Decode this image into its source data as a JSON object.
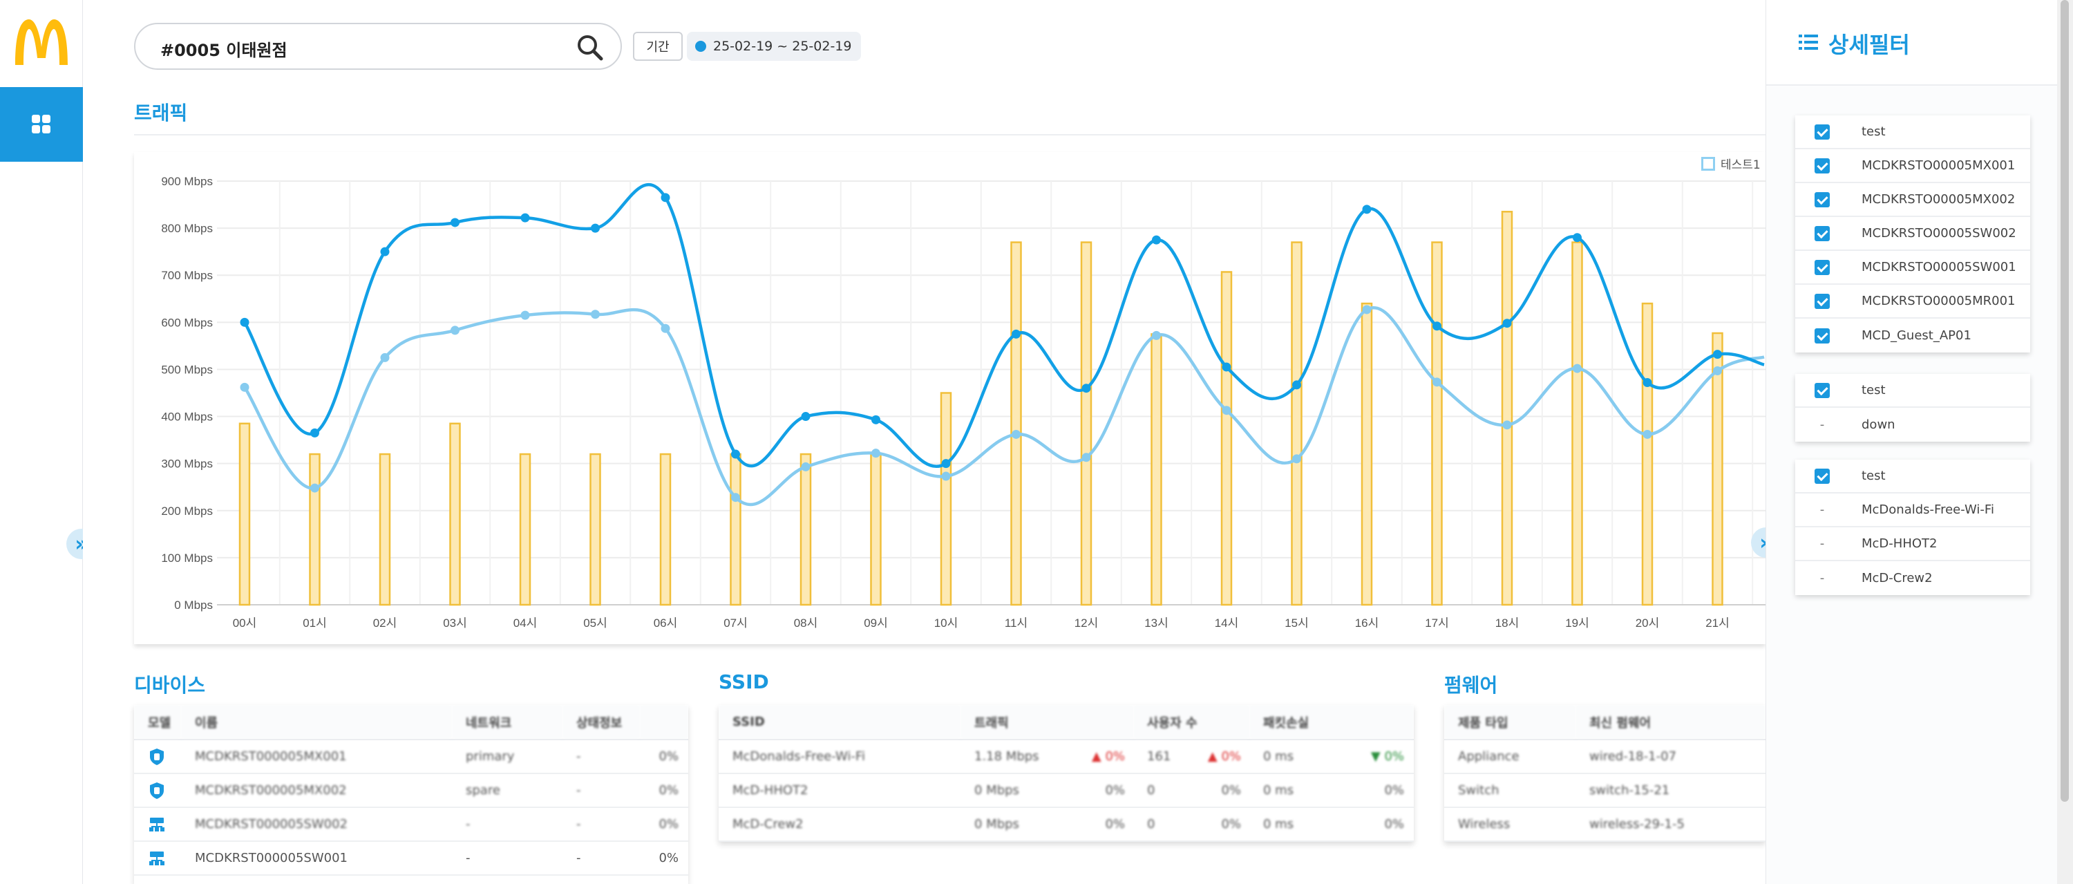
{
  "search": {
    "value": "#0005 이태원점"
  },
  "period": {
    "label": "기간",
    "range": "25-02-19 ~ 25-02-19"
  },
  "traffic": {
    "title": "트래픽",
    "legend_label": "테스트1"
  },
  "chart_data": {
    "type": "line",
    "title": "",
    "xlabel": "",
    "ylabel": "",
    "ylim": [
      0,
      900
    ],
    "y_ticks": [
      "0 Mbps",
      "100 Mbps",
      "200 Mbps",
      "300 Mbps",
      "400 Mbps",
      "500 Mbps",
      "600 Mbps",
      "700 Mbps",
      "800 Mbps",
      "900 Mbps"
    ],
    "categories": [
      "00시",
      "01시",
      "02시",
      "03시",
      "04시",
      "05시",
      "06시",
      "07시",
      "08시",
      "09시",
      "10시",
      "11시",
      "12시",
      "13시",
      "14시",
      "15시",
      "16시",
      "17시",
      "18시",
      "19시",
      "20시",
      "21시"
    ],
    "series": [
      {
        "values": [
          600,
          365,
          750,
          812,
          822,
          800,
          865,
          320,
          400,
          393,
          300,
          575,
          460,
          775,
          505,
          467,
          840,
          592,
          598,
          780,
          472,
          532
        ],
        "color": "#12a0e6",
        "type": "line"
      },
      {
        "values": [
          462,
          248,
          525,
          583,
          615,
          617,
          587,
          228,
          293,
          322,
          273,
          362,
          313,
          572,
          413,
          310,
          627,
          473,
          382,
          502,
          362,
          497
        ],
        "color": "#86cbef",
        "type": "line"
      },
      {
        "values": [
          385,
          320,
          320,
          385,
          320,
          320,
          320,
          320,
          320,
          320,
          450,
          770,
          770,
          575,
          707,
          770,
          640,
          770,
          835,
          770,
          640,
          577
        ],
        "color": "#f1bf3a",
        "type": "bar"
      }
    ]
  },
  "devices": {
    "title": "디바이스",
    "headers": [
      "모델",
      "이름",
      "네트워크",
      "상태정보"
    ],
    "rows": [
      {
        "name": "MCDKRST000005MX001",
        "role": "primary",
        "status": "-",
        "pct": "0%"
      },
      {
        "name": "MCDKRST000005MX002",
        "role": "spare",
        "status": "-",
        "pct": "0%"
      },
      {
        "name": "MCDKRST000005SW002",
        "role": "-",
        "status": "-",
        "pct": "0%"
      },
      {
        "name": "MCDKRST000005SW001",
        "role": "-",
        "status": "-",
        "pct": "0%"
      }
    ]
  },
  "ssid": {
    "title": "SSID",
    "headers": [
      "SSID",
      "트래픽",
      "사용자 수",
      "패킷손실"
    ],
    "rows": [
      {
        "name": "McDonalds-Free-Wi-Fi",
        "traffic": "1.18 Mbps",
        "t_pct": "0%",
        "users": "161",
        "u_pct": "0%",
        "loss": "0 ms",
        "l_pct": "0%"
      },
      {
        "name": "McD-HHOT2",
        "traffic": "0 Mbps",
        "t_pct": "0%",
        "users": "0",
        "u_pct": "0%",
        "loss": "0 ms",
        "l_pct": "0%"
      },
      {
        "name": "McD-Crew2",
        "traffic": "0 Mbps",
        "t_pct": "0%",
        "users": "0",
        "u_pct": "0%",
        "loss": "0 ms",
        "l_pct": "0%"
      }
    ]
  },
  "firmware": {
    "title": "펌웨어",
    "headers": [
      "제품 타입",
      "최신 펌웨어"
    ],
    "rows": [
      {
        "type": "Appliance",
        "version": "wired-18-1-07"
      },
      {
        "type": "Switch",
        "version": "switch-15-21"
      },
      {
        "type": "Wireless",
        "version": "wireless-29-1-5"
      }
    ]
  },
  "filter_panel": {
    "title": "상세필터",
    "groups": [
      {
        "items": [
          {
            "checked": true,
            "label": "test"
          },
          {
            "checked": true,
            "label": "MCDKRSTO00005MX001"
          },
          {
            "checked": true,
            "label": "MCDKRSTO00005MX002"
          },
          {
            "checked": true,
            "label": "MCDKRSTO00005SW002"
          },
          {
            "checked": true,
            "label": "MCDKRSTO00005SW001"
          },
          {
            "checked": true,
            "label": "MCDKRSTO00005MR001"
          },
          {
            "checked": true,
            "label": "MCD_Guest_AP01"
          }
        ]
      },
      {
        "items": [
          {
            "checked": true,
            "label": "test"
          },
          {
            "checked": false,
            "label": "down"
          }
        ]
      },
      {
        "items": [
          {
            "checked": true,
            "label": "test"
          },
          {
            "checked": false,
            "label": "McDonalds-Free-Wi-Fi"
          },
          {
            "checked": false,
            "label": "McD-HHOT2"
          },
          {
            "checked": false,
            "label": "McD-Crew2"
          }
        ]
      }
    ]
  },
  "colors": {
    "accent": "#1a98de",
    "bar": "#f1bf3a",
    "line_primary": "#12a0e6",
    "line_secondary": "#86cbef",
    "logo": "#ffbc0d"
  },
  "dash_symbol": "-"
}
